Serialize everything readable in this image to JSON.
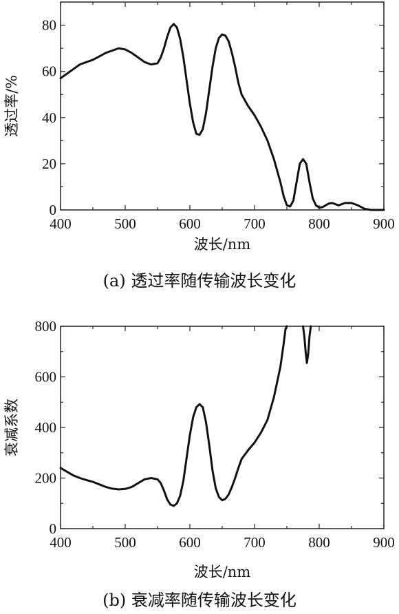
{
  "chart_data": [
    {
      "type": "line",
      "title": "",
      "caption": "(a)  透过率随传输波长变化",
      "xlabel": "波长/nm",
      "ylabel": "透过率/%",
      "xlim": [
        400,
        900
      ],
      "ylim": [
        0,
        90
      ],
      "xticks": [
        400,
        500,
        600,
        700,
        800,
        900
      ],
      "yticks": [
        0,
        20,
        40,
        60,
        80
      ],
      "grid": false,
      "series": [
        {
          "x": [
            400,
            410,
            420,
            430,
            440,
            450,
            460,
            470,
            480,
            490,
            500,
            510,
            520,
            530,
            540,
            550,
            555,
            560,
            565,
            570,
            575,
            580,
            585,
            590,
            595,
            600,
            605,
            610,
            615,
            620,
            625,
            630,
            635,
            640,
            645,
            650,
            655,
            660,
            665,
            670,
            675,
            680,
            690,
            700,
            710,
            720,
            730,
            740,
            745,
            750,
            755,
            760,
            765,
            770,
            775,
            780,
            785,
            790,
            795,
            800,
            805,
            810,
            815,
            820,
            830,
            840,
            850,
            855,
            860,
            870,
            880,
            890,
            900
          ],
          "y": [
            57,
            59,
            61,
            63,
            64,
            65,
            66.5,
            68,
            69,
            70,
            69.5,
            68,
            66,
            64,
            63,
            63.5,
            66,
            70,
            75,
            79,
            80.5,
            79,
            74,
            66,
            56,
            46,
            38,
            33,
            32.5,
            35,
            42,
            52,
            62,
            70,
            74.5,
            76,
            75.5,
            73,
            68,
            62,
            55,
            50,
            45,
            41,
            36,
            30,
            22,
            12,
            6,
            2,
            1.5,
            4,
            12,
            20,
            22,
            20,
            12,
            5,
            2,
            1,
            1.2,
            2,
            2.8,
            3,
            2,
            3,
            3,
            2.5,
            2,
            0.5,
            0,
            0,
            0
          ]
        }
      ]
    },
    {
      "type": "line",
      "title": "",
      "caption": "(b)  衰减率随传输波长变化",
      "xlabel": "波长/nm",
      "ylabel": "衰减系数",
      "xlim": [
        400,
        900
      ],
      "ylim": [
        0,
        800
      ],
      "xticks": [
        400,
        500,
        600,
        700,
        800,
        900
      ],
      "yticks": [
        0,
        200,
        400,
        600,
        800
      ],
      "grid": false,
      "series": [
        {
          "x": [
            400,
            410,
            420,
            430,
            440,
            450,
            460,
            470,
            480,
            490,
            500,
            510,
            520,
            530,
            540,
            550,
            555,
            560,
            565,
            570,
            575,
            580,
            585,
            590,
            595,
            600,
            605,
            610,
            615,
            620,
            625,
            630,
            635,
            640,
            645,
            650,
            655,
            660,
            665,
            670,
            675,
            680,
            690,
            700,
            710,
            720,
            730,
            740,
            745,
            748,
            750
          ],
          "y": [
            240,
            225,
            210,
            200,
            192,
            185,
            175,
            165,
            158,
            155,
            157,
            165,
            180,
            195,
            200,
            195,
            180,
            150,
            115,
            95,
            90,
            100,
            130,
            190,
            280,
            370,
            440,
            480,
            492,
            480,
            420,
            330,
            230,
            160,
            125,
            112,
            118,
            135,
            165,
            200,
            240,
            275,
            310,
            340,
            380,
            430,
            520,
            640,
            730,
            790,
            800
          ]
        },
        {
          "x": [
            775,
            777,
            779,
            781,
            783,
            785,
            787
          ],
          "y": [
            800,
            760,
            700,
            655,
            690,
            760,
            800
          ]
        }
      ]
    }
  ]
}
